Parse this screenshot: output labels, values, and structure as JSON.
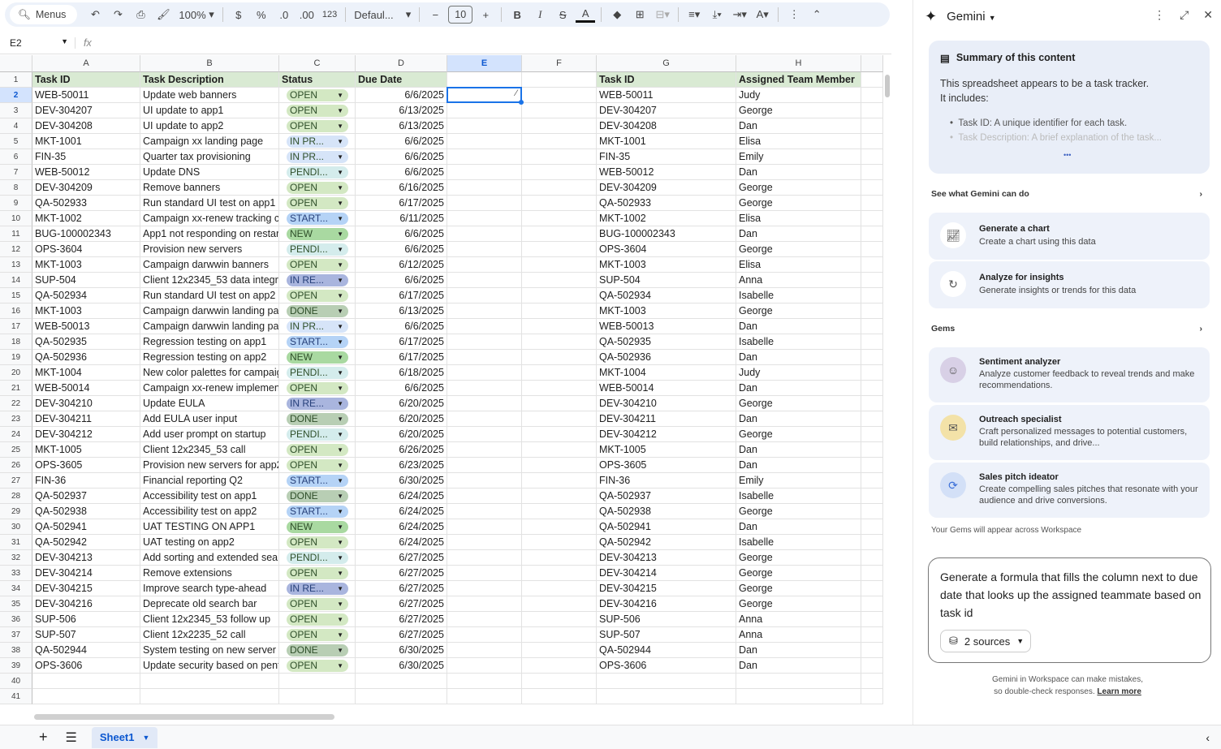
{
  "toolbar": {
    "menus": "Menus",
    "zoom": "100%",
    "currency": "$",
    "percent": "%",
    "dec_minus": ".0",
    "dec_plus": ".00",
    "number_format": "123",
    "font": "Defaul...",
    "font_size": "10"
  },
  "formula_bar": {
    "cell_ref": "E2",
    "fx": "fx",
    "value": ""
  },
  "columns": [
    "A",
    "B",
    "C",
    "D",
    "E",
    "F",
    "G",
    "H"
  ],
  "selected_cell": "E2",
  "headers": {
    "A": "Task ID",
    "B": "Task Description",
    "C": "Status",
    "D": "Due Date",
    "E": "",
    "F": "",
    "G": "Task ID",
    "H": "Assigned Team Member"
  },
  "status_colors": {
    "OPEN": "#d3e8c3",
    "IN PR...": "#d6e4f8",
    "PENDI...": "#d4ecec",
    "START...": "#b5d3f6",
    "NEW": "#a9d9a1",
    "IN RE...": "#a9b5de",
    "DONE": "#b8ceb4"
  },
  "rows": [
    [
      "WEB-50011",
      "Update web banners",
      "OPEN",
      "6/6/2025",
      "WEB-50011",
      "Judy"
    ],
    [
      "DEV-304207",
      "UI update to app1",
      "OPEN",
      "6/13/2025",
      "DEV-304207",
      "George"
    ],
    [
      "DEV-304208",
      "UI update to app2",
      "OPEN",
      "6/13/2025",
      "DEV-304208",
      "Dan"
    ],
    [
      "MKT-1001",
      "Campaign xx landing page",
      "IN PR...",
      "6/6/2025",
      "MKT-1001",
      "Elisa"
    ],
    [
      "FIN-35",
      "Quarter tax provisioning",
      "IN PR...",
      "6/6/2025",
      "FIN-35",
      "Emily"
    ],
    [
      "WEB-50012",
      "Update DNS",
      "PENDI...",
      "6/6/2025",
      "WEB-50012",
      "Dan"
    ],
    [
      "DEV-304209",
      "Remove banners",
      "OPEN",
      "6/16/2025",
      "DEV-304209",
      "George"
    ],
    [
      "QA-502933",
      "Run standard UI test on app1",
      "OPEN",
      "6/17/2025",
      "QA-502933",
      "George"
    ],
    [
      "MKT-1002",
      "Campaign xx-renew tracking cc",
      "START...",
      "6/11/2025",
      "MKT-1002",
      "Elisa"
    ],
    [
      "BUG-100002343",
      "App1 not responding on restart",
      "NEW",
      "6/6/2025",
      "BUG-100002343",
      "Dan"
    ],
    [
      "OPS-3604",
      "Provision new servers",
      "PENDI...",
      "6/6/2025",
      "OPS-3604",
      "George"
    ],
    [
      "MKT-1003",
      "Campaign darwwin banners",
      "OPEN",
      "6/12/2025",
      "MKT-1003",
      "Elisa"
    ],
    [
      "SUP-504",
      "Client 12x2345_53 data integrit",
      "IN RE...",
      "6/6/2025",
      "SUP-504",
      "Anna"
    ],
    [
      "QA-502934",
      "Run standard UI test on app2",
      "OPEN",
      "6/17/2025",
      "QA-502934",
      "Isabelle"
    ],
    [
      "MKT-1003",
      "Campaign darwwin landing pag",
      "DONE",
      "6/13/2025",
      "MKT-1003",
      "George"
    ],
    [
      "WEB-50013",
      "Campaign darwwin landing pag",
      "IN PR...",
      "6/6/2025",
      "WEB-50013",
      "Dan"
    ],
    [
      "QA-502935",
      "Regression testing on app1",
      "START...",
      "6/17/2025",
      "QA-502935",
      "Isabelle"
    ],
    [
      "QA-502936",
      "Regression testing on app2",
      "NEW",
      "6/17/2025",
      "QA-502936",
      "Dan"
    ],
    [
      "MKT-1004",
      "New color palettes for campaig",
      "PENDI...",
      "6/18/2025",
      "MKT-1004",
      "Judy"
    ],
    [
      "WEB-50014",
      "Campaign xx-renew implement",
      "OPEN",
      "6/6/2025",
      "WEB-50014",
      "Dan"
    ],
    [
      "DEV-304210",
      "Update EULA",
      "IN RE...",
      "6/20/2025",
      "DEV-304210",
      "George"
    ],
    [
      "DEV-304211",
      "Add EULA user input",
      "DONE",
      "6/20/2025",
      "DEV-304211",
      "Dan"
    ],
    [
      "DEV-304212",
      "Add user prompt on startup",
      "PENDI...",
      "6/20/2025",
      "DEV-304212",
      "George"
    ],
    [
      "MKT-1005",
      "Client 12x2345_53 call",
      "OPEN",
      "6/26/2025",
      "MKT-1005",
      "Dan"
    ],
    [
      "OPS-3605",
      "Provision new servers for app2",
      "OPEN",
      "6/23/2025",
      "OPS-3605",
      "Dan"
    ],
    [
      "FIN-36",
      "Financial reporting Q2",
      "START...",
      "6/30/2025",
      "FIN-36",
      "Emily"
    ],
    [
      "QA-502937",
      "Accessibility test on app1",
      "DONE",
      "6/24/2025",
      "QA-502937",
      "Isabelle"
    ],
    [
      "QA-502938",
      "Accessibility test on app2",
      "START...",
      "6/24/2025",
      "QA-502938",
      "George"
    ],
    [
      "QA-502941",
      "UAT TESTING ON APP1",
      "NEW",
      "6/24/2025",
      "QA-502941",
      "Dan"
    ],
    [
      "QA-502942",
      "UAT testing on app2",
      "OPEN",
      "6/24/2025",
      "QA-502942",
      "Isabelle"
    ],
    [
      "DEV-304213",
      "Add sorting and extended sear",
      "PENDI...",
      "6/27/2025",
      "DEV-304213",
      "George"
    ],
    [
      "DEV-304214",
      "Remove extensions",
      "OPEN",
      "6/27/2025",
      "DEV-304214",
      "George"
    ],
    [
      "DEV-304215",
      "Improve search type-ahead",
      "IN RE...",
      "6/27/2025",
      "DEV-304215",
      "George"
    ],
    [
      "DEV-304216",
      "Deprecate old search bar",
      "OPEN",
      "6/27/2025",
      "DEV-304216",
      "George"
    ],
    [
      "SUP-506",
      "Client 12x2345_53 follow up",
      "OPEN",
      "6/27/2025",
      "SUP-506",
      "Anna"
    ],
    [
      "SUP-507",
      "Client 12x2235_52 call",
      "OPEN",
      "6/27/2025",
      "SUP-507",
      "Anna"
    ],
    [
      "QA-502944",
      "System testing on new server p",
      "DONE",
      "6/30/2025",
      "QA-502944",
      "Dan"
    ],
    [
      "OPS-3606",
      "Update security based on pent",
      "OPEN",
      "6/30/2025",
      "OPS-3606",
      "Dan"
    ]
  ],
  "sheet_tab": "Sheet1",
  "gemini": {
    "title": "Gemini",
    "summary_title": "Summary of this content",
    "summary_text_1": "This spreadsheet appears to be a task tracker.",
    "summary_text_2": "It includes:",
    "bullet_1": "Task ID: A unique identifier for each task.",
    "bullet_2": "Task Description: A brief explanation of the task...",
    "more": "•••",
    "see_what": "See what Gemini can do",
    "actions": [
      {
        "title": "Generate a chart",
        "desc": "Create a chart using this data"
      },
      {
        "title": "Analyze for insights",
        "desc": "Generate insights or trends for this data"
      }
    ],
    "gems_label": "Gems",
    "gems": [
      {
        "title": "Sentiment analyzer",
        "desc": "Analyze customer feedback to reveal trends and make recommendations."
      },
      {
        "title": "Outreach specialist",
        "desc": "Craft personalized messages to potential customers, build relationships, and drive..."
      },
      {
        "title": "Sales pitch ideator",
        "desc": "Create compelling sales pitches that resonate with your audience and drive conversions."
      }
    ],
    "gems_note": "Your Gems will appear across Workspace",
    "prompt": "Generate a formula that fills the column next to due date that looks up the assigned teammate based on task id",
    "sources": "2 sources",
    "disclaimer_1": "Gemini in Workspace can make mistakes,",
    "disclaimer_2": "so double-check responses.",
    "learn_more": "Learn more"
  }
}
